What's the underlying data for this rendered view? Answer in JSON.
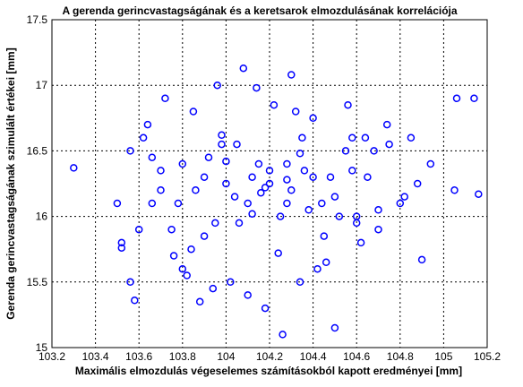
{
  "chart_data": {
    "type": "scatter",
    "title": "A gerenda gerincvastagságának és a keretsarok elmozdulásának korrelációja",
    "xlabel": "Maximális elmozdulás végeselemes számításokból kapott eredményei [mm]",
    "ylabel": "Gerenda gerincvastagságának szimulált értékei [mm]",
    "xlim": [
      103.2,
      105.2
    ],
    "ylim": [
      15,
      17.5
    ],
    "xticks": [
      "103.2",
      "103.4",
      "103.6",
      "103.8",
      "104",
      "104.2",
      "104.4",
      "104.6",
      "104.8",
      "105",
      "105.2"
    ],
    "yticks": [
      "15",
      "15.5",
      "16",
      "16.5",
      "17",
      "17.5"
    ],
    "grid": true,
    "marker": "circle-open",
    "color": "#0000ff",
    "series": [
      {
        "x": [
          103.3,
          103.5,
          103.52,
          103.56,
          103.52,
          103.58,
          103.62,
          103.66,
          103.7,
          103.75,
          103.8,
          103.85,
          103.9,
          103.95,
          104.0,
          104.05,
          104.1,
          104.15,
          104.2,
          104.25,
          104.3,
          104.35,
          104.4,
          104.45,
          104.5,
          104.55,
          104.6,
          104.65,
          104.7,
          104.75,
          104.8,
          104.85,
          104.9,
          105.06,
          105.14,
          105.16,
          105.05,
          104.94,
          104.88,
          104.82,
          104.74,
          104.7,
          104.64,
          104.6,
          104.56,
          104.48,
          104.42,
          104.34,
          104.26,
          104.18,
          104.1,
          104.02,
          103.94,
          103.88,
          103.82,
          103.76,
          103.7,
          103.66,
          103.6,
          103.56,
          103.64,
          103.72,
          103.78,
          103.86,
          103.92,
          103.98,
          104.04,
          104.12,
          104.2,
          104.28,
          104.36,
          104.44,
          104.52,
          104.58,
          104.62,
          104.68,
          104.5,
          104.3,
          104.08,
          103.96,
          104.14,
          104.22,
          104.32,
          104.4,
          104.12,
          103.9,
          103.84,
          103.8,
          104.28,
          104.28,
          104.16,
          104.0,
          104.38,
          104.58,
          104.46,
          104.24,
          104.06,
          103.98,
          104.34,
          104.18
        ],
        "y": [
          16.37,
          16.1,
          15.8,
          15.5,
          15.76,
          15.36,
          16.6,
          16.45,
          16.2,
          15.9,
          15.6,
          16.8,
          16.3,
          15.95,
          16.25,
          16.55,
          16.1,
          16.4,
          16.35,
          16.0,
          16.2,
          16.6,
          16.3,
          15.85,
          16.15,
          16.5,
          16.0,
          16.3,
          15.9,
          16.55,
          16.1,
          16.6,
          15.67,
          16.9,
          16.9,
          16.17,
          16.2,
          16.4,
          16.25,
          16.15,
          16.7,
          16.05,
          16.6,
          15.95,
          16.85,
          16.3,
          15.6,
          15.5,
          15.1,
          15.3,
          15.4,
          15.5,
          15.45,
          15.35,
          15.55,
          15.7,
          16.35,
          16.1,
          15.9,
          16.5,
          16.7,
          16.9,
          16.1,
          16.2,
          16.45,
          16.55,
          16.15,
          16.3,
          16.25,
          16.4,
          16.35,
          16.1,
          16.0,
          16.6,
          15.8,
          16.5,
          15.15,
          17.08,
          17.13,
          17.0,
          16.98,
          16.85,
          16.8,
          16.75,
          16.02,
          15.85,
          15.75,
          16.4,
          16.28,
          16.1,
          16.18,
          16.42,
          16.05,
          16.35,
          15.65,
          15.72,
          15.95,
          16.62,
          16.48,
          16.22
        ]
      }
    ]
  }
}
